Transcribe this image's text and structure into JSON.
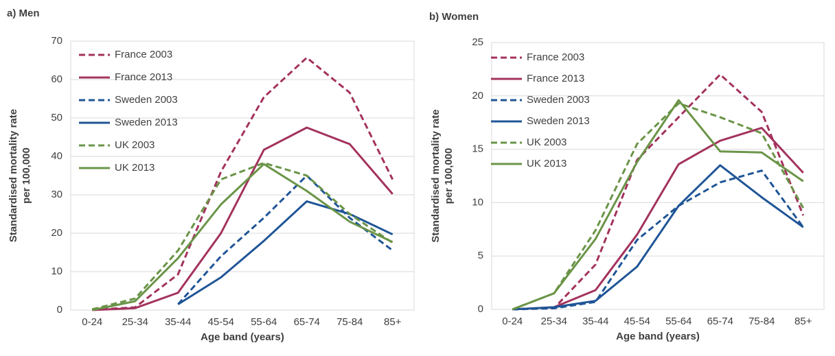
{
  "chart_data": [
    {
      "type": "line",
      "title": "a) Men",
      "xlabel": "Age band (years)",
      "ylabel": [
        "Standardised mortality rate",
        "per 100,000"
      ],
      "categories": [
        "0-24",
        "25-34",
        "35-44",
        "45-54",
        "55-64",
        "65-74",
        "75-84",
        "85+"
      ],
      "ylim": [
        0,
        70
      ],
      "yticks": [
        0,
        10,
        20,
        30,
        40,
        50,
        60,
        70
      ],
      "grid": true,
      "legend": "upper left",
      "series": [
        {
          "name": "France 2003",
          "color": "#a3325d",
          "dashed": true,
          "values": [
            0.1,
            0.7,
            9.3,
            36,
            55.4,
            65.7,
            56.6,
            34
          ]
        },
        {
          "name": "France 2013",
          "color": "#a3325d",
          "dashed": false,
          "values": [
            0,
            0.5,
            4.5,
            20,
            41.7,
            47.5,
            43.2,
            30.2
          ]
        },
        {
          "name": "Sweden 2003",
          "color": "#1f5596",
          "dashed": true,
          "values": [
            null,
            null,
            1.5,
            14,
            24,
            35,
            24,
            15.5
          ]
        },
        {
          "name": "Sweden 2013",
          "color": "#1f5596",
          "dashed": false,
          "values": [
            null,
            null,
            1.5,
            8.5,
            18,
            28.3,
            25,
            19.7
          ]
        },
        {
          "name": "UK 2003",
          "color": "#6a9447",
          "dashed": true,
          "values": [
            0.2,
            3,
            15.5,
            34,
            38.3,
            35,
            25,
            17.5
          ]
        },
        {
          "name": "UK 2013",
          "color": "#6a9447",
          "dashed": false,
          "values": [
            0,
            2.3,
            13.5,
            27.5,
            38,
            31,
            23,
            17.7
          ]
        }
      ]
    },
    {
      "type": "line",
      "title": "b) Women",
      "xlabel": "Age band (years)",
      "ylabel": [
        "Standardised mortality rate",
        "per 100,000"
      ],
      "categories": [
        "0-24",
        "25-34",
        "35-44",
        "45-54",
        "55-64",
        "65-74",
        "75-84",
        "85+"
      ],
      "ylim": [
        0,
        25
      ],
      "yticks": [
        0,
        5,
        10,
        15,
        20,
        25
      ],
      "grid": true,
      "legend": "upper left",
      "series": [
        {
          "name": "France 2003",
          "color": "#a3325d",
          "dashed": true,
          "values": [
            0,
            0.1,
            4.2,
            14,
            18,
            22,
            18.5,
            8.8
          ]
        },
        {
          "name": "France 2013",
          "color": "#a3325d",
          "dashed": false,
          "values": [
            0,
            0.2,
            1.8,
            7,
            13.6,
            15.8,
            17,
            12.8
          ]
        },
        {
          "name": "Sweden 2003",
          "color": "#1f5596",
          "dashed": true,
          "values": [
            0,
            0.1,
            0.7,
            6.5,
            9.7,
            11.9,
            13,
            7.7
          ]
        },
        {
          "name": "Sweden 2013",
          "color": "#1f5596",
          "dashed": false,
          "values": [
            0,
            0.2,
            0.8,
            4,
            9.7,
            13.5,
            10.5,
            7.7
          ]
        },
        {
          "name": "UK 2003",
          "color": "#6a9447",
          "dashed": true,
          "values": [
            0,
            1.5,
            7.4,
            15.5,
            19.3,
            18,
            16.5,
            9.5
          ]
        },
        {
          "name": "UK 2013",
          "color": "#6a9447",
          "dashed": false,
          "values": [
            0,
            1.5,
            6.6,
            13.8,
            19.6,
            14.8,
            14.7,
            12
          ]
        }
      ]
    }
  ]
}
